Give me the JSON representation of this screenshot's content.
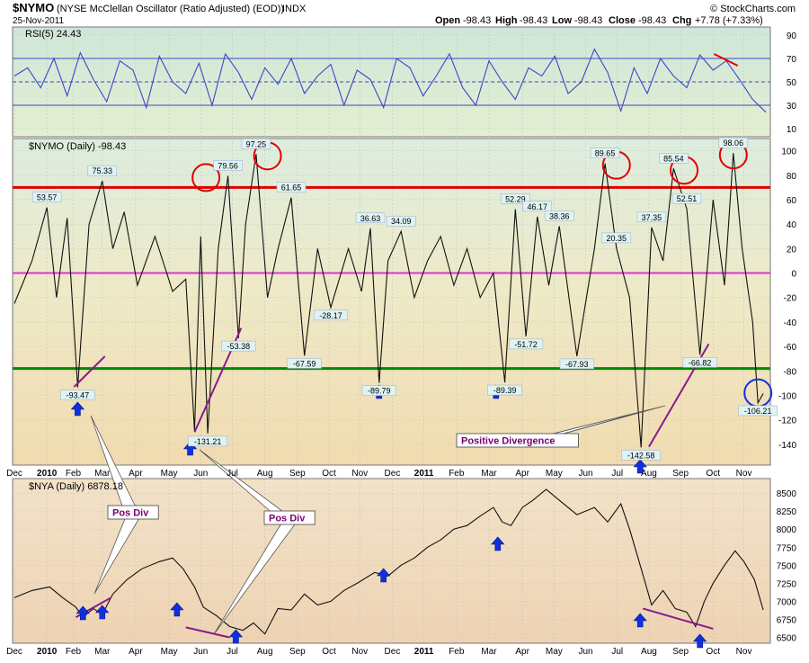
{
  "header": {
    "symbol": "$NYMO",
    "description": "(NYSE McClellan Oscillator (Ratio Adjusted) (EOD))",
    "exchange": "INDX",
    "date": "25-Nov-2011",
    "watermark": "© StockCharts.com",
    "ohlc": {
      "open_label": "Open",
      "open": "-98.43",
      "high_label": "High",
      "high": "-98.43",
      "low_label": "Low",
      "low": "-98.43",
      "close_label": "Close",
      "close": "-98.43",
      "chg_label": "Chg",
      "chg": "+7.78 (+7.33%)"
    }
  },
  "colors": {
    "rsi_bg": "#d9ecd6",
    "main_bg_top": "#dfeede",
    "main_bg_bottom": "#f1deb0",
    "nya_bg": "#f0dcc0",
    "line": "#111111",
    "rsi_line": "#3b47c8",
    "overbought": "#e00000",
    "zero": "#e030d0",
    "oversold": "#008800",
    "arrow": "#1030e0",
    "divergence": "#8b1a8b",
    "circle_red": "#e00000",
    "circle_blue": "#1030e0"
  },
  "chart_data": [
    {
      "type": "line",
      "panel": "rsi",
      "label": "RSI(5) 24.43",
      "ylim": [
        3,
        97
      ],
      "yticks": [
        10,
        30,
        50,
        70,
        90
      ],
      "reference_lines": [
        30,
        50,
        70
      ],
      "last": 24.43,
      "x": [
        0,
        15,
        30,
        45,
        60,
        75,
        90,
        105,
        120,
        135,
        150,
        165,
        180,
        195,
        210,
        225,
        240,
        255,
        270,
        285,
        300,
        315,
        330,
        345,
        360,
        375,
        390,
        405,
        420,
        435,
        450,
        465,
        480,
        495,
        510,
        525,
        540,
        555,
        570,
        585,
        600,
        615,
        630,
        645,
        660,
        675,
        690,
        705,
        720,
        735,
        750,
        765,
        780,
        795,
        810,
        825,
        840,
        855
      ],
      "values": [
        55,
        62,
        45,
        70,
        38,
        75,
        52,
        33,
        68,
        60,
        28,
        72,
        50,
        40,
        66,
        30,
        74,
        58,
        35,
        62,
        48,
        70,
        40,
        55,
        65,
        30,
        60,
        52,
        28,
        70,
        62,
        38,
        55,
        74,
        45,
        30,
        68,
        50,
        35,
        62,
        55,
        72,
        40,
        50,
        78,
        58,
        25,
        62,
        40,
        70,
        55,
        45,
        73,
        60,
        68,
        52,
        35,
        24
      ]
    },
    {
      "type": "line",
      "panel": "nymo",
      "label": "$NYMO (Daily) -98.43",
      "ylim": [
        -157,
        110
      ],
      "yticks": [
        -140,
        -120,
        -100,
        -80,
        -60,
        -40,
        -20,
        0,
        20,
        40,
        60,
        80,
        100
      ],
      "x_ticks": [
        "Dec",
        "2010",
        "Feb",
        "Mar",
        "Apr",
        "May",
        "Jun",
        "Jul",
        "Aug",
        "Sep",
        "Oct",
        "Nov",
        "Dec",
        "2011",
        "Feb",
        "Mar",
        "Apr",
        "May",
        "Jun",
        "Jul",
        "Aug",
        "Sep",
        "Oct",
        "Nov"
      ],
      "reference_lines": [
        {
          "value": 70,
          "role": "overbought"
        },
        {
          "value": 0,
          "role": "zero"
        },
        {
          "value": -78,
          "role": "oversold"
        }
      ],
      "x": [
        0,
        20,
        37,
        48,
        60,
        72,
        85,
        100,
        112,
        125,
        140,
        160,
        180,
        195,
        205,
        212,
        220,
        232,
        243,
        255,
        263,
        275,
        288,
        300,
        315,
        330,
        345,
        360,
        380,
        395,
        405,
        415,
        425,
        440,
        455,
        470,
        485,
        500,
        515,
        530,
        545,
        558,
        570,
        582,
        595,
        608,
        620,
        640,
        660,
        672,
        685,
        700,
        713,
        725,
        738,
        750,
        765,
        780,
        795,
        808,
        818,
        828,
        840,
        846,
        852
      ],
      "values": [
        -25,
        10,
        53.57,
        -20,
        45,
        -93.47,
        40,
        75.33,
        20,
        50,
        -10,
        30,
        -15,
        -5,
        -129,
        30,
        -131.21,
        20,
        79.56,
        -53.38,
        40,
        97.25,
        -20,
        20,
        61.65,
        -67.59,
        20,
        -28.17,
        20,
        -15,
        36.63,
        -89.79,
        10,
        34.09,
        -20,
        10,
        30,
        -10,
        20,
        -20,
        0,
        -89.39,
        52.29,
        -51.72,
        46.17,
        -10,
        38.36,
        -67.93,
        20,
        89.65,
        20.35,
        -20,
        -142.58,
        37.35,
        10,
        85.54,
        52.51,
        -66.82,
        60,
        -10,
        98.06,
        20,
        -40,
        -106.21,
        -98.43
      ],
      "annotations": [
        "53.57",
        "-93.47",
        "75.33",
        "-131.21",
        "79.56",
        "-53.38",
        "97.25",
        "61.65",
        "-67.59",
        "-28.17",
        "36.63",
        "-89.79",
        "34.09",
        "52.29",
        "-89.39",
        "-51.72",
        "46.17",
        "38.36",
        "-67.93",
        "89.65",
        "20.35",
        "-142.58",
        "37.35",
        "85.54",
        "52.51",
        "-66.82",
        "98.06",
        "-106.21"
      ],
      "callout": "Positive Divergence"
    },
    {
      "type": "line",
      "panel": "nya",
      "label": "$NYA (Daily) 6878.18",
      "ylim": [
        6420,
        8700
      ],
      "yticks": [
        6500,
        6750,
        7000,
        7250,
        7500,
        7750,
        8000,
        8250,
        8500
      ],
      "x_ticks": [
        "Dec",
        "2010",
        "Feb",
        "Mar",
        "Apr",
        "May",
        "Jun",
        "Jul",
        "Aug",
        "Sep",
        "Oct",
        "Nov",
        "Dec",
        "2011",
        "Feb",
        "Mar",
        "Apr",
        "May",
        "Jun",
        "Jul",
        "Aug",
        "Sep",
        "Oct",
        "Nov"
      ],
      "x": [
        0,
        20,
        40,
        55,
        70,
        78,
        90,
        100,
        112,
        128,
        145,
        165,
        180,
        192,
        205,
        215,
        230,
        245,
        260,
        272,
        285,
        300,
        315,
        330,
        345,
        360,
        375,
        390,
        410,
        425,
        440,
        455,
        470,
        485,
        500,
        515,
        530,
        545,
        555,
        565,
        578,
        590,
        605,
        620,
        640,
        660,
        675,
        690,
        700,
        712,
        725,
        738,
        752,
        765,
        775,
        785,
        795,
        808,
        820,
        830,
        842,
        852
      ],
      "values": [
        7050,
        7150,
        7200,
        7050,
        6920,
        6780,
        6900,
        6820,
        7100,
        7300,
        7450,
        7550,
        7600,
        7450,
        7200,
        6920,
        6800,
        6650,
        6600,
        6700,
        6550,
        6900,
        6880,
        7100,
        6950,
        7000,
        7150,
        7250,
        7400,
        7350,
        7500,
        7600,
        7750,
        7850,
        8000,
        8050,
        8180,
        8300,
        8100,
        8050,
        8300,
        8400,
        8550,
        8400,
        8200,
        8300,
        8100,
        8350,
        8000,
        7500,
        6950,
        7150,
        6900,
        6850,
        6650,
        7000,
        7250,
        7500,
        7700,
        7550,
        7300,
        6880
      ],
      "callouts": [
        "Pos Div",
        "Pos Div"
      ]
    }
  ]
}
